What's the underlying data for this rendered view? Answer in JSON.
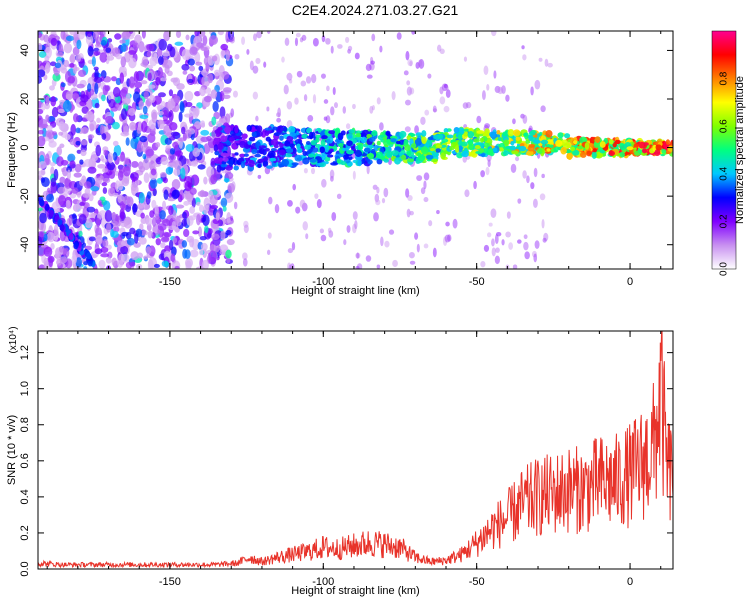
{
  "title": "C2E4.2024.271.03.27.G21",
  "chart_data": [
    {
      "type": "heatmap",
      "title": "C2E4.2024.271.03.27.G21",
      "xlabel": "Height of straight line (km)",
      "ylabel": "Frequency (Hz)",
      "xlim": [
        -193,
        14
      ],
      "ylim": [
        -50,
        48
      ],
      "xticks": [
        -150,
        -100,
        -50,
        0
      ],
      "yticks": [
        -40,
        -20,
        0,
        20,
        40
      ],
      "colorbar": {
        "label": "Normalized spectral amplitude",
        "range": [
          0,
          1
        ],
        "ticks": [
          0.0,
          0.2,
          0.4,
          0.6,
          0.8
        ],
        "tick_labels": [
          "0.0",
          "0.2",
          "0.4",
          "0.6",
          "0.8"
        ],
        "colormap": [
          "#ffffff",
          "#c890f0",
          "#8000ff",
          "#0000ff",
          "#00c8ff",
          "#00ff80",
          "#80ff00",
          "#ffff00",
          "#ff8000",
          "#ff0000",
          "#ff0090"
        ]
      },
      "features": {
        "main_band": {
          "x_start": -135,
          "x_end": 14,
          "frequency": 0,
          "amplitude_start": 0.3,
          "amplitude_end": 0.9
        },
        "chirp": {
          "x_start": -193,
          "x_end": -175,
          "freq_start": -20,
          "freq_end": -48,
          "amplitude": 0.3
        },
        "noise_region": {
          "x_start": -193,
          "x_end": -130,
          "amplitude": 0.2
        }
      }
    },
    {
      "type": "line",
      "xlabel": "Height of straight line (km)",
      "ylabel": "SNR (10 * v/v)",
      "y_multiplier": "(x10⁴)",
      "xlim": [
        -193,
        14
      ],
      "ylim": [
        0,
        1.32
      ],
      "xticks": [
        -150,
        -100,
        -50,
        0
      ],
      "yticks": [
        0.0,
        0.2,
        0.4,
        0.6,
        0.8,
        1.0,
        1.2
      ],
      "ytick_labels": [
        "0.0",
        "0.2",
        "0.4",
        "0.6",
        "0.8",
        "1.0",
        "1.2"
      ],
      "color": "#e8332a",
      "series": [
        {
          "x": [
            -193,
            -185,
            -175,
            -165,
            -155,
            -145,
            -135,
            -128,
            -124,
            -120,
            -115,
            -110,
            -105,
            -100,
            -95,
            -90,
            -85,
            -80,
            -75,
            -70,
            -65,
            -60,
            -55,
            -50,
            -45,
            -40,
            -35,
            -30,
            -25,
            -20,
            -15,
            -10,
            -5,
            0,
            5,
            8,
            10,
            12,
            14
          ],
          "y": [
            0.04,
            0.03,
            0.03,
            0.03,
            0.03,
            0.03,
            0.03,
            0.04,
            0.08,
            0.05,
            0.08,
            0.1,
            0.12,
            0.15,
            0.14,
            0.16,
            0.18,
            0.17,
            0.15,
            0.08,
            0.05,
            0.06,
            0.1,
            0.18,
            0.28,
            0.35,
            0.45,
            0.5,
            0.52,
            0.55,
            0.55,
            0.6,
            0.6,
            0.65,
            0.75,
            0.85,
            1.25,
            0.7,
            0.65
          ]
        }
      ]
    }
  ]
}
